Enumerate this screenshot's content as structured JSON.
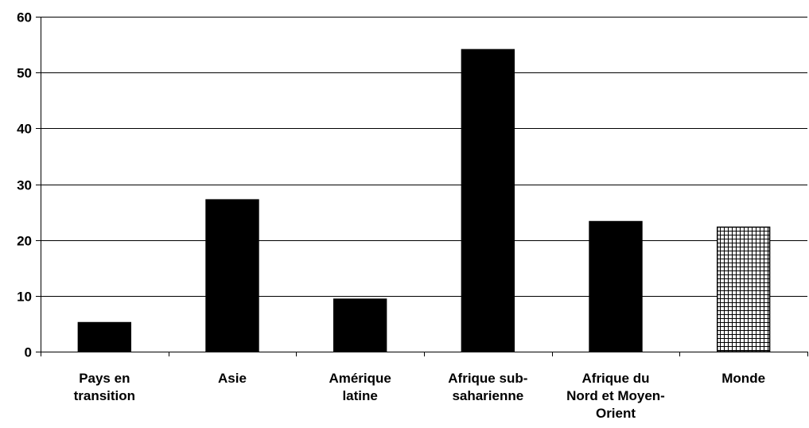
{
  "chart_data": {
    "type": "bar",
    "title": "",
    "xlabel": "",
    "ylabel": "",
    "ylim": [
      0,
      60
    ],
    "yticks": [
      0,
      10,
      20,
      30,
      40,
      50,
      60
    ],
    "grid": true,
    "categories": [
      [
        "Pays en",
        "transition"
      ],
      [
        "Asie"
      ],
      [
        "Amérique",
        "latine"
      ],
      [
        "Afrique sub-",
        "saharienne"
      ],
      [
        "Afrique du",
        "Nord et Moyen-",
        "Orient"
      ],
      [
        "Monde"
      ]
    ],
    "values": [
      5.2,
      27.2,
      9.4,
      54.1,
      23.3,
      22.3
    ],
    "bar_fills": [
      "solid",
      "solid",
      "solid",
      "solid",
      "solid",
      "crosshatch"
    ],
    "colors": {
      "bar": "#000000",
      "grid": "#000000",
      "axis": "#000000"
    }
  }
}
